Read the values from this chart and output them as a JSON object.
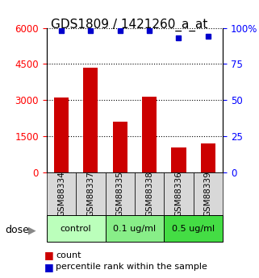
{
  "title": "GDS1809 / 1421260_a_at",
  "samples": [
    "GSM88334",
    "GSM88337",
    "GSM88335",
    "GSM88338",
    "GSM88336",
    "GSM88339"
  ],
  "counts": [
    3100,
    4350,
    2100,
    3150,
    1050,
    1200
  ],
  "percentiles": [
    98,
    98,
    98,
    98,
    93,
    94
  ],
  "bar_color": "#cc0000",
  "dot_color": "#0000cc",
  "ylim_left": [
    0,
    6000
  ],
  "ylim_right": [
    0,
    100
  ],
  "yticks_left": [
    0,
    1500,
    3000,
    4500,
    6000
  ],
  "yticks_right": [
    0,
    25,
    50,
    75,
    100
  ],
  "ytick_labels_left": [
    "0",
    "1500",
    "3000",
    "4500",
    "6000"
  ],
  "ytick_labels_right": [
    "0",
    "25",
    "50",
    "75",
    "100%"
  ],
  "groups": [
    {
      "label": "control",
      "indices": [
        0,
        1
      ],
      "color": "#bbffbb"
    },
    {
      "label": "0.1 ug/ml",
      "indices": [
        2,
        3
      ],
      "color": "#88ee88"
    },
    {
      "label": "0.5 ug/ml",
      "indices": [
        4,
        5
      ],
      "color": "#44dd44"
    }
  ],
  "dose_label": "dose",
  "legend_count_label": "count",
  "legend_pct_label": "percentile rank within the sample",
  "bg_label": "#d8d8d8",
  "title_fontsize": 11,
  "tick_fontsize": 8.5,
  "label_fontsize": 7.5,
  "group_fontsize": 8
}
